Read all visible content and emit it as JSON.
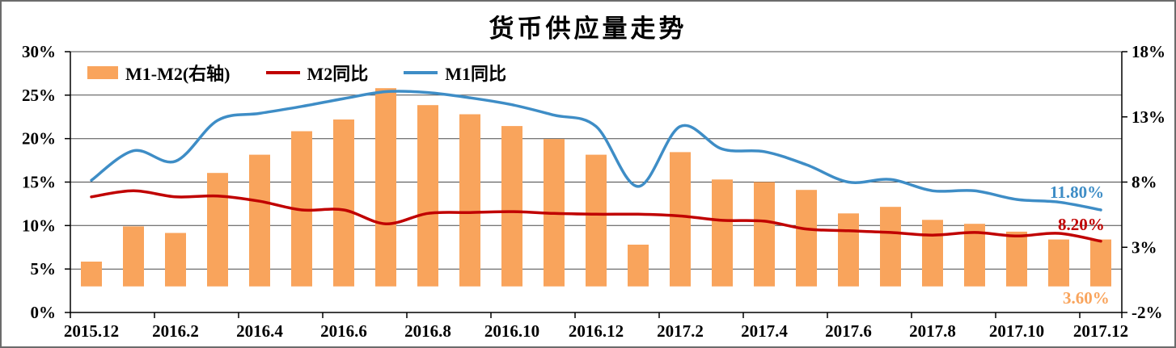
{
  "chart_data": {
    "type": "combo",
    "title": "货币供应量走势",
    "x": [
      "2015.12",
      "2016.1",
      "2016.2",
      "2016.3",
      "2016.4",
      "2016.5",
      "2016.6",
      "2016.7",
      "2016.8",
      "2016.9",
      "2016.10",
      "2016.11",
      "2016.12",
      "2017.1",
      "2017.2",
      "2017.3",
      "2017.4",
      "2017.5",
      "2017.6",
      "2017.7",
      "2017.8",
      "2017.9",
      "2017.10",
      "2017.11",
      "2017.12"
    ],
    "x_axis": {
      "tick_indices": [
        0,
        2,
        4,
        6,
        8,
        10,
        12,
        14,
        16,
        18,
        20,
        22,
        24
      ],
      "tick_labels": [
        "2015.12",
        "2016.2",
        "2016.4",
        "2016.6",
        "2016.8",
        "2016.10",
        "2016.12",
        "2017.2",
        "2017.4",
        "2017.6",
        "2017.8",
        "2017.10",
        "2017.12"
      ]
    },
    "left_axis": {
      "min": 0,
      "max": 30,
      "tick_values": [
        30,
        25,
        20,
        15,
        10,
        5,
        0
      ],
      "tick_labels": [
        "30%",
        "25%",
        "20%",
        "15%",
        "10%",
        "5%",
        "0%"
      ]
    },
    "right_axis": {
      "min": -2,
      "max": 18,
      "tick_values": [
        18,
        13,
        8,
        3,
        -2
      ],
      "tick_labels": [
        "18%",
        "13%",
        "8%",
        "3%",
        "-2%"
      ]
    },
    "series": [
      {
        "name": "M1-M2(右轴)",
        "id": "m1-minus-m2",
        "type": "bar",
        "axis": "right",
        "color": "#F9A45C",
        "values": [
          1.9,
          4.6,
          4.1,
          8.7,
          10.1,
          11.9,
          12.8,
          15.2,
          13.9,
          13.2,
          12.3,
          11.3,
          10.1,
          3.2,
          10.3,
          8.2,
          8.0,
          7.4,
          5.6,
          6.1,
          5.1,
          4.8,
          4.2,
          3.6,
          3.6
        ]
      },
      {
        "name": "M2同比",
        "id": "m2-yoy",
        "type": "line",
        "axis": "left",
        "color": "#C00000",
        "values": [
          13.3,
          14.0,
          13.3,
          13.4,
          12.8,
          11.8,
          11.8,
          10.2,
          11.4,
          11.5,
          11.6,
          11.4,
          11.3,
          11.3,
          11.1,
          10.6,
          10.5,
          9.6,
          9.4,
          9.2,
          8.9,
          9.2,
          8.8,
          9.1,
          8.2
        ]
      },
      {
        "name": "M1同比",
        "id": "m1-yoy",
        "type": "line",
        "axis": "left",
        "color": "#3E8DC6",
        "values": [
          15.2,
          18.6,
          17.4,
          22.1,
          22.9,
          23.7,
          24.6,
          25.4,
          25.3,
          24.7,
          23.9,
          22.7,
          21.4,
          14.5,
          21.4,
          18.8,
          18.5,
          17.0,
          15.0,
          15.3,
          14.0,
          14.0,
          13.0,
          12.7,
          11.8
        ]
      }
    ],
    "annotations": [
      {
        "text": "11.80%",
        "series": "M1同比",
        "color": "#3E8DC6"
      },
      {
        "text": "8.20%",
        "series": "M2同比",
        "color": "#C00000"
      },
      {
        "text": "3.60%",
        "series": "M1-M2(右轴)",
        "color": "#F9A45C"
      }
    ],
    "legend_position": "top-left",
    "grid": true
  }
}
